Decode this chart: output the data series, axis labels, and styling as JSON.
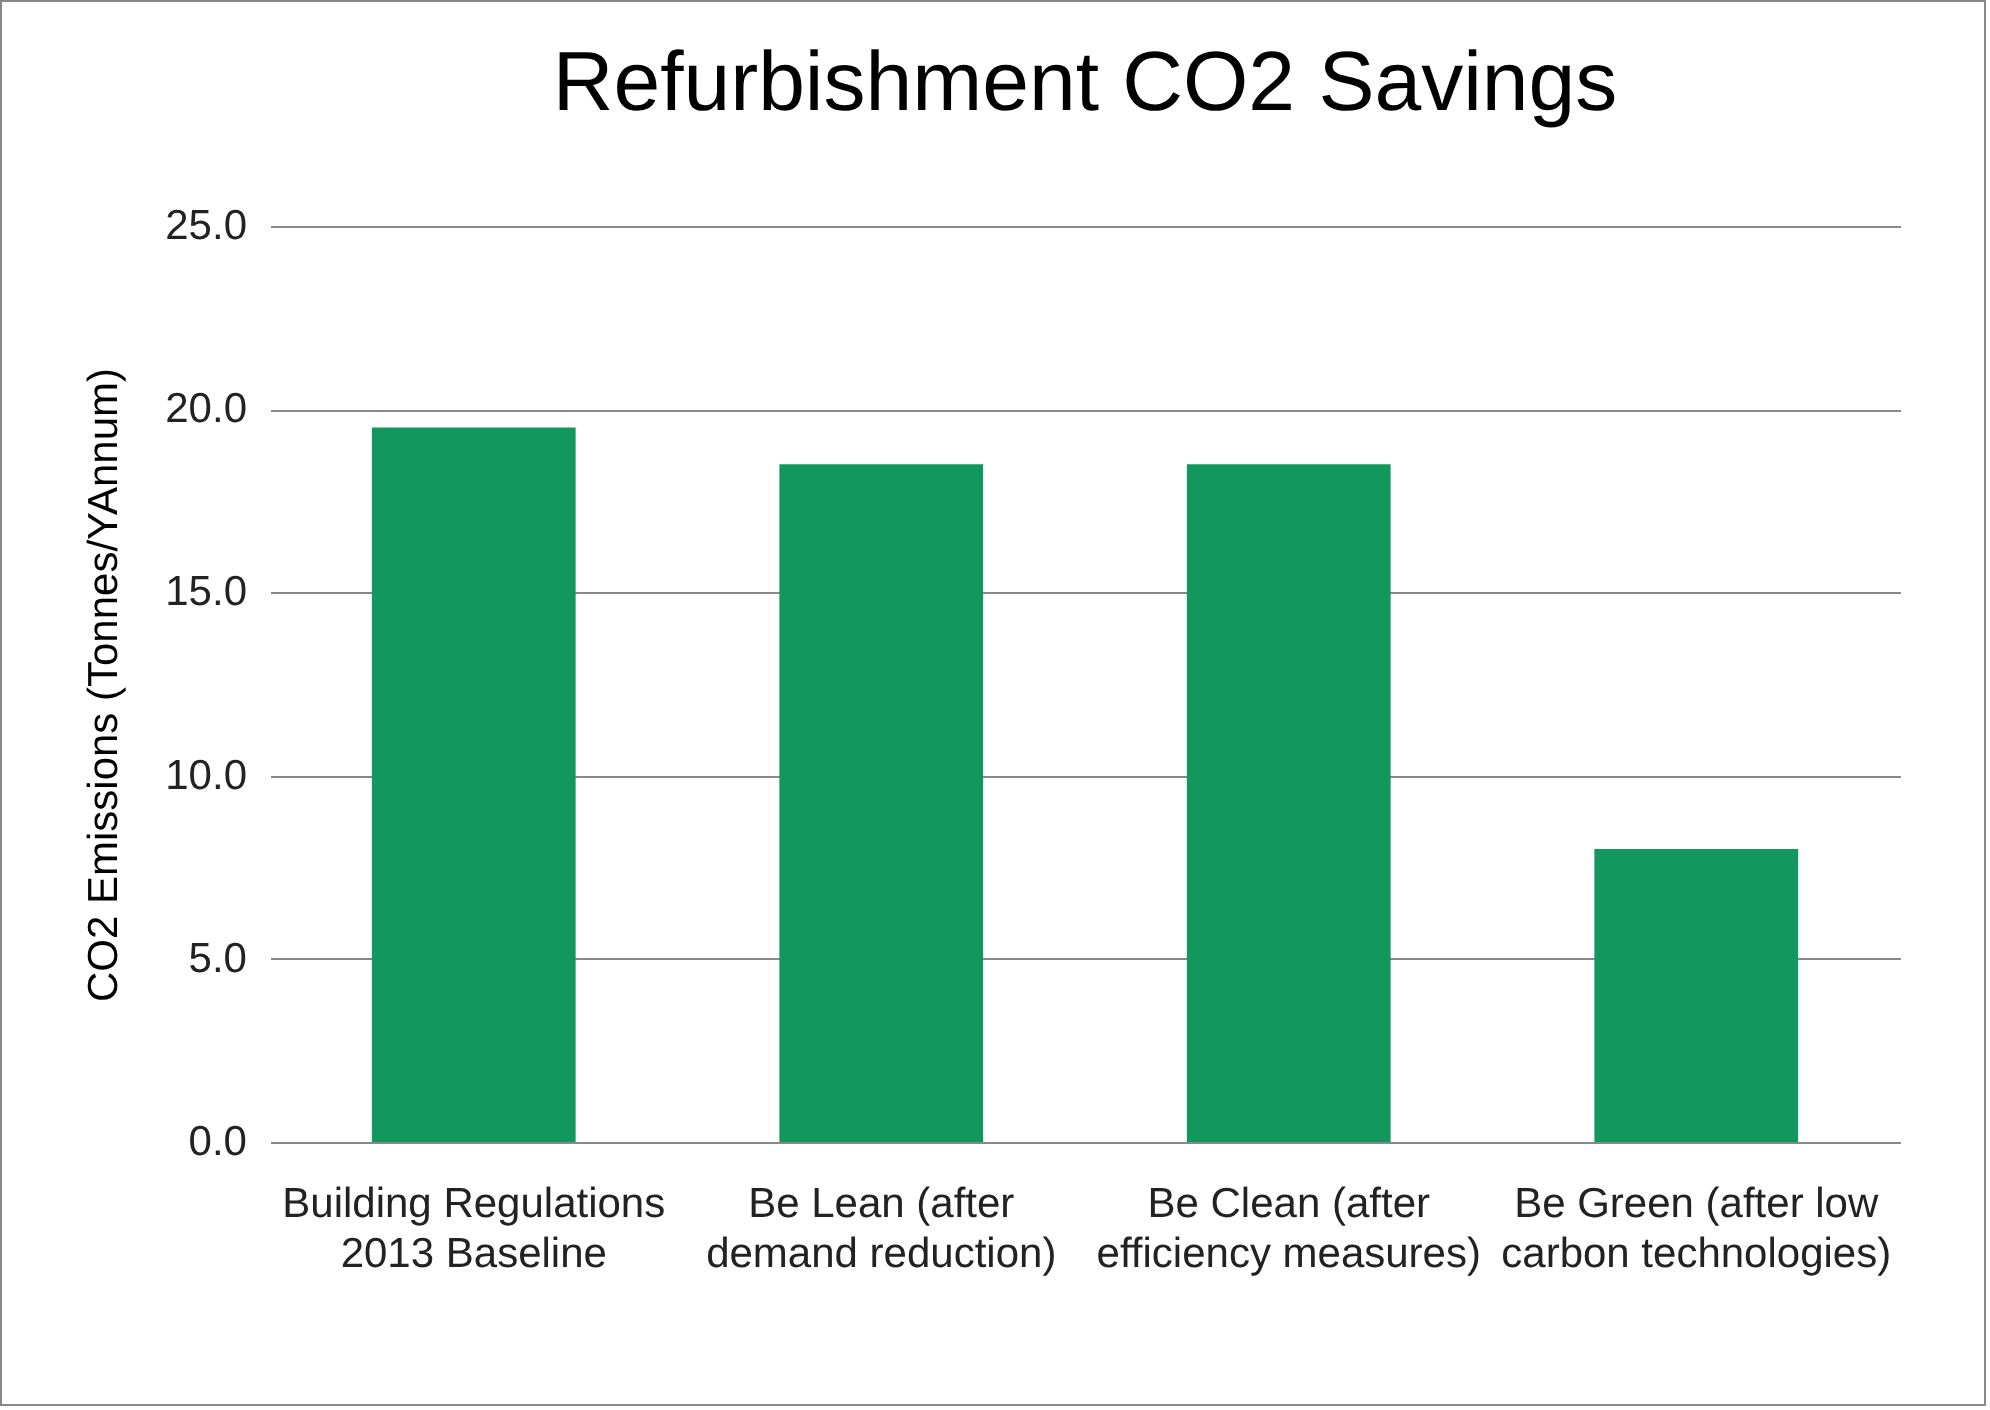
{
  "chart_data": {
    "type": "bar",
    "title": "Refurbishment CO2 Savings",
    "ylabel": "CO2 Emissions (Tonnes/YAnnum)",
    "categories": [
      "Building Regulations 2013 Baseline",
      "Be Lean (after demand reduction)",
      "Be Clean (after efficiency measures)",
      "Be Green (after low carbon technologies)"
    ],
    "values": [
      19.5,
      18.5,
      18.5,
      8.0
    ],
    "color": "#12975f",
    "ylim": [
      0,
      25
    ],
    "yticks": [
      {
        "value": 0,
        "label": "0.0"
      },
      {
        "value": 5,
        "label": "5.0"
      },
      {
        "value": 10,
        "label": "10.0"
      },
      {
        "value": 15,
        "label": "15.0"
      },
      {
        "value": 20,
        "label": "20.0"
      },
      {
        "value": 25,
        "label": "25.0"
      }
    ],
    "grid": "y"
  }
}
